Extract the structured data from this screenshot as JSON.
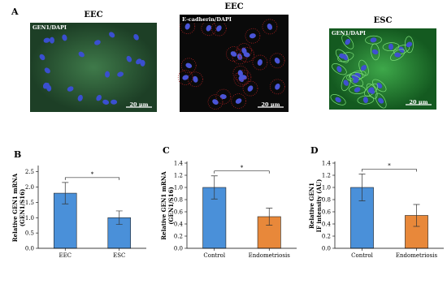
{
  "figure": {
    "panel": "A",
    "images": [
      {
        "title": "EEC",
        "stain": "GEN1/DAPI",
        "scale": "20 μm"
      },
      {
        "title": "EEC",
        "stain": "E-cadherin/DAPI",
        "scale": "20 μm"
      },
      {
        "title": "ESC",
        "stain": "GEN1/DAPI",
        "scale": "20 μm"
      }
    ]
  },
  "chart_data": [
    {
      "type": "bar",
      "panel": "B",
      "ylabel": [
        "Relative GEN1 mRNA",
        "(GEN1/S16)"
      ],
      "categories": [
        "EEC",
        "ESC"
      ],
      "values": [
        1.8,
        1.0
      ],
      "errors": [
        0.35,
        0.22
      ],
      "colors": [
        "#4a90d9",
        "#4a90d9"
      ],
      "significance": "*",
      "ylim": [
        0,
        2.65
      ],
      "yticks": [
        {
          "value": 0,
          "label": "0.0"
        },
        0.5,
        {
          "value": 1,
          "label": "1.0"
        },
        1.5,
        {
          "value": 2,
          "label": "2.0"
        },
        2.5
      ]
    },
    {
      "type": "bar",
      "panel": "C",
      "ylabel": [
        "Relative GEN1 mRNA",
        "(GEN1/S16)"
      ],
      "categories": [
        "Control",
        "Endometriosis"
      ],
      "values": [
        1.0,
        0.52
      ],
      "errors": [
        0.19,
        0.14
      ],
      "colors": [
        "#4a90d9",
        "#e8883a"
      ],
      "significance": "*",
      "ylim": [
        0,
        1.4
      ],
      "yticks": [
        {
          "value": 0,
          "label": "0.0"
        },
        0.2,
        0.4,
        0.6,
        0.8,
        {
          "value": 1,
          "label": "1.0"
        },
        1.2,
        1.4
      ]
    },
    {
      "type": "bar",
      "panel": "D",
      "ylabel": [
        "Relative GEN1",
        "IF intensity (AU)"
      ],
      "categories": [
        "Control",
        "Endometriosis"
      ],
      "values": [
        1.0,
        0.54
      ],
      "errors": [
        0.22,
        0.18
      ],
      "colors": [
        "#4a90d9",
        "#e8883a"
      ],
      "significance": "*",
      "ylim": [
        0,
        1.4
      ],
      "yticks": [
        {
          "value": 0,
          "label": "0.0"
        },
        0.2,
        0.4,
        0.6,
        0.8,
        {
          "value": 1,
          "label": "1.0"
        },
        1.2,
        1.4
      ]
    }
  ]
}
